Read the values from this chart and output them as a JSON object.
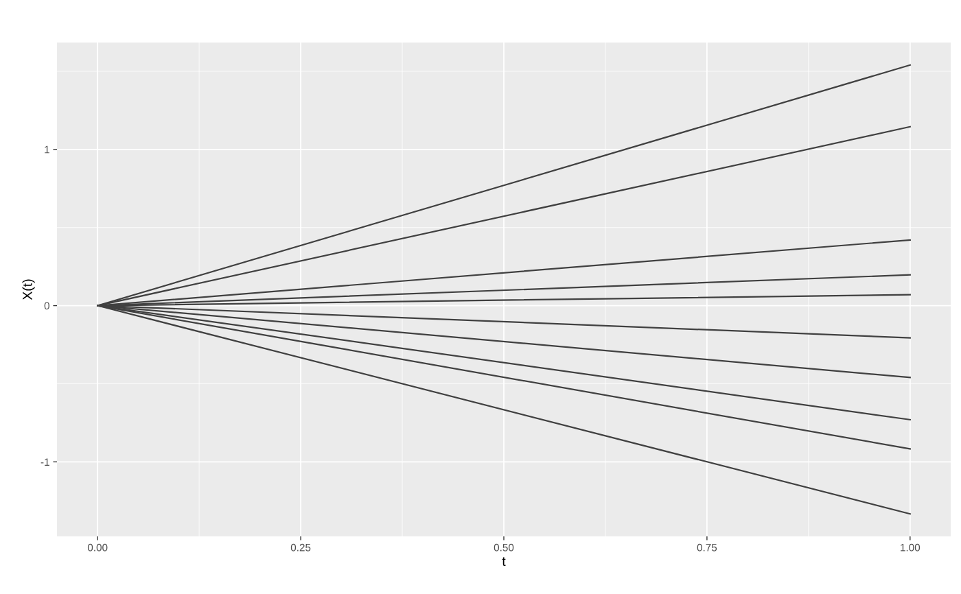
{
  "chart_data": {
    "type": "line",
    "xlabel": "t",
    "ylabel": "X(t)",
    "x": [
      0,
      1
    ],
    "xlim": [
      -0.05,
      1.05
    ],
    "xticks": [
      {
        "value": 0,
        "label": "0.00"
      },
      {
        "value": 0.25,
        "label": "0.25"
      },
      {
        "value": 0.5,
        "label": "0.50"
      },
      {
        "value": 0.75,
        "label": "0.75"
      },
      {
        "value": 1,
        "label": "1.00"
      }
    ],
    "ylim": [
      -1.477,
      1.684
    ],
    "yticks": [
      -1,
      0,
      1
    ],
    "grid": true,
    "line_style": "solid",
    "series": [
      {
        "color": "#404040",
        "values": [
          0,
          1.54
        ]
      },
      {
        "color": "#404040",
        "values": [
          0,
          1.145
        ]
      },
      {
        "color": "#404040",
        "values": [
          0,
          0.42
        ]
      },
      {
        "color": "#404040",
        "values": [
          0,
          0.197
        ]
      },
      {
        "color": "#404040",
        "values": [
          0,
          0.07
        ]
      },
      {
        "color": "#404040",
        "values": [
          0,
          -0.206
        ]
      },
      {
        "color": "#404040",
        "values": [
          0,
          -0.46
        ]
      },
      {
        "color": "#404040",
        "values": [
          0,
          -0.73
        ]
      },
      {
        "color": "#404040",
        "values": [
          0,
          -0.917
        ]
      },
      {
        "color": "#404040",
        "values": [
          0,
          -1.333
        ]
      }
    ]
  }
}
